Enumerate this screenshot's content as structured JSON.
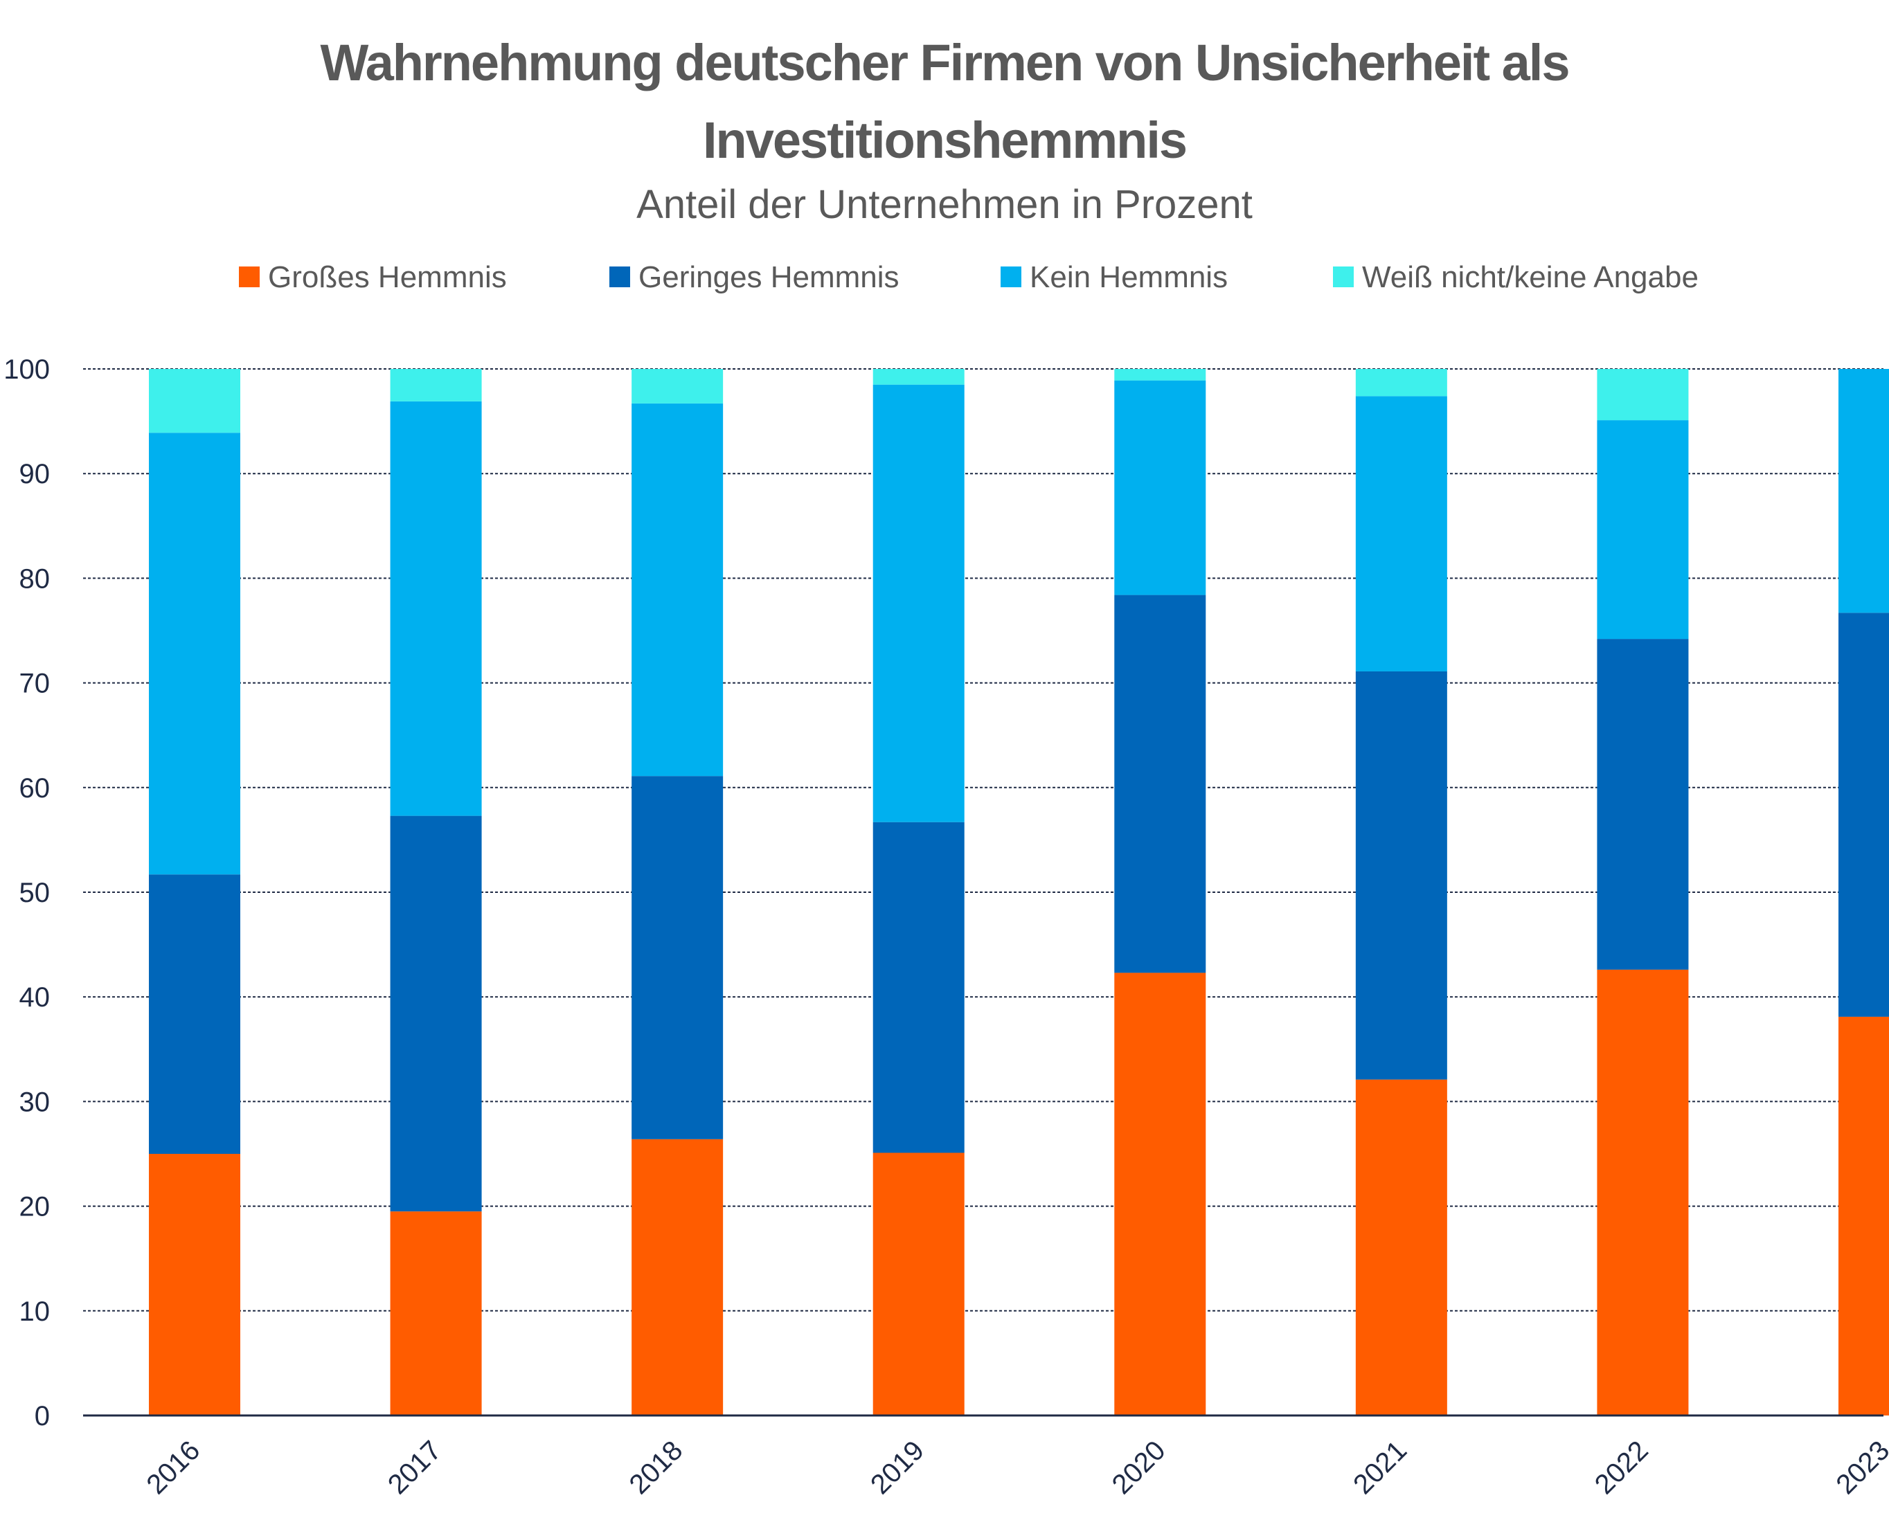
{
  "chart_data": {
    "type": "bar",
    "stacked": true,
    "title_lines": [
      "Wahrnehmung deutscher Firmen von Unsicherheit als",
      "Investitionshemmnis"
    ],
    "subtitle": "Anteil der Unternehmen in Prozent",
    "categories": [
      "2016",
      "2017",
      "2018",
      "2019",
      "2020",
      "2021",
      "2022",
      "2023"
    ],
    "series": [
      {
        "name": "Großes Hemmnis",
        "color": "#ff5c00",
        "values": [
          25.0,
          19.5,
          26.4,
          25.1,
          42.3,
          32.1,
          42.6,
          38.1
        ]
      },
      {
        "name": "Geringes Hemmnis",
        "color": "#0066b9",
        "values": [
          26.7,
          37.8,
          34.7,
          31.6,
          36.1,
          39.0,
          31.6,
          38.6
        ]
      },
      {
        "name": "Kein Hemmnis",
        "color": "#00b0ef",
        "values": [
          42.2,
          39.6,
          35.6,
          41.8,
          20.5,
          26.3,
          20.9,
          23.3
        ]
      },
      {
        "name": "Weiß nicht/keine Angabe",
        "color": "#3ef0ec",
        "values": [
          6.1,
          3.1,
          3.3,
          1.5,
          1.1,
          2.6,
          4.9,
          0.0
        ]
      }
    ],
    "ylim": [
      0,
      100
    ],
    "yticks": [
      0,
      10,
      20,
      30,
      40,
      50,
      60,
      70,
      80,
      90,
      100
    ],
    "grid": true,
    "legend_position": "top"
  }
}
